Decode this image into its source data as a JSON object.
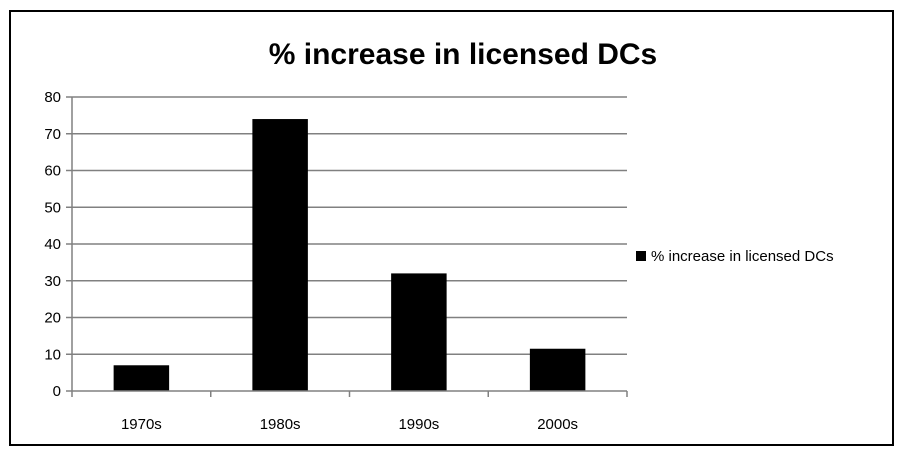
{
  "chart_data": {
    "type": "bar",
    "title": "% increase in licensed DCs",
    "categories": [
      "1970s",
      "1980s",
      "1990s",
      "2000s"
    ],
    "series": [
      {
        "name": "% increase in licensed DCs",
        "values": [
          7,
          74,
          32,
          11.5
        ]
      }
    ],
    "ylim": [
      0,
      80
    ],
    "yticks": [
      0,
      10,
      20,
      30,
      40,
      50,
      60,
      70,
      80
    ],
    "grid": true,
    "legend_position": "right",
    "bar_color": "#000000",
    "grid_color": "#808080"
  }
}
